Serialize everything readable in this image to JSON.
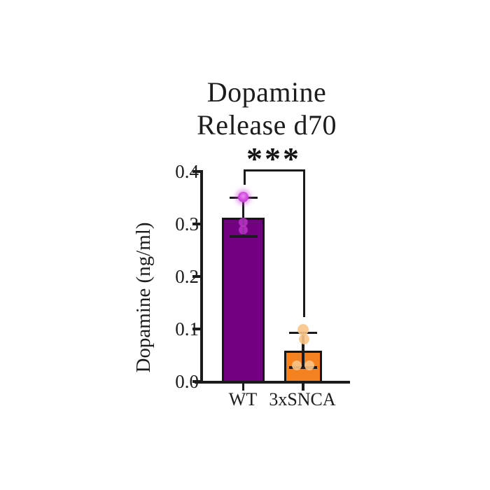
{
  "title": {
    "line1": "Dopamine",
    "line2": "Release d70"
  },
  "significance": {
    "label": "***"
  },
  "y_axis": {
    "label": "Dopamine (ng/ml)",
    "tick_labels": [
      "0.0",
      "0.1",
      "0.2",
      "0.3",
      "0.4"
    ]
  },
  "chart_data": {
    "type": "bar",
    "title": "Dopamine Release d70",
    "xlabel": "",
    "ylabel": "Dopamine (ng/ml)",
    "ylim": [
      0,
      0.4
    ],
    "yticks": [
      0.0,
      0.1,
      0.2,
      0.3,
      0.4
    ],
    "grid": false,
    "legend": false,
    "categories": [
      "WT",
      "3xSNCA"
    ],
    "series": [
      {
        "name": "WT",
        "mean": 0.312,
        "error_low": 0.276,
        "error_high": 0.35,
        "bar_color": "#720081",
        "point_color": "#C83BD6",
        "points": [
          0.352,
          0.303,
          0.289
        ]
      },
      {
        "name": "3xSNCA",
        "mean": 0.059,
        "error_low": 0.027,
        "error_high": 0.093,
        "bar_color": "#F58220",
        "point_color": "#F9C488",
        "points": [
          0.099,
          0.081,
          0.031,
          0.031
        ]
      }
    ],
    "significance": {
      "label": "***",
      "between": [
        "WT",
        "3xSNCA"
      ]
    },
    "ink_color": "#1b1b1d",
    "background": "#ffffff"
  }
}
